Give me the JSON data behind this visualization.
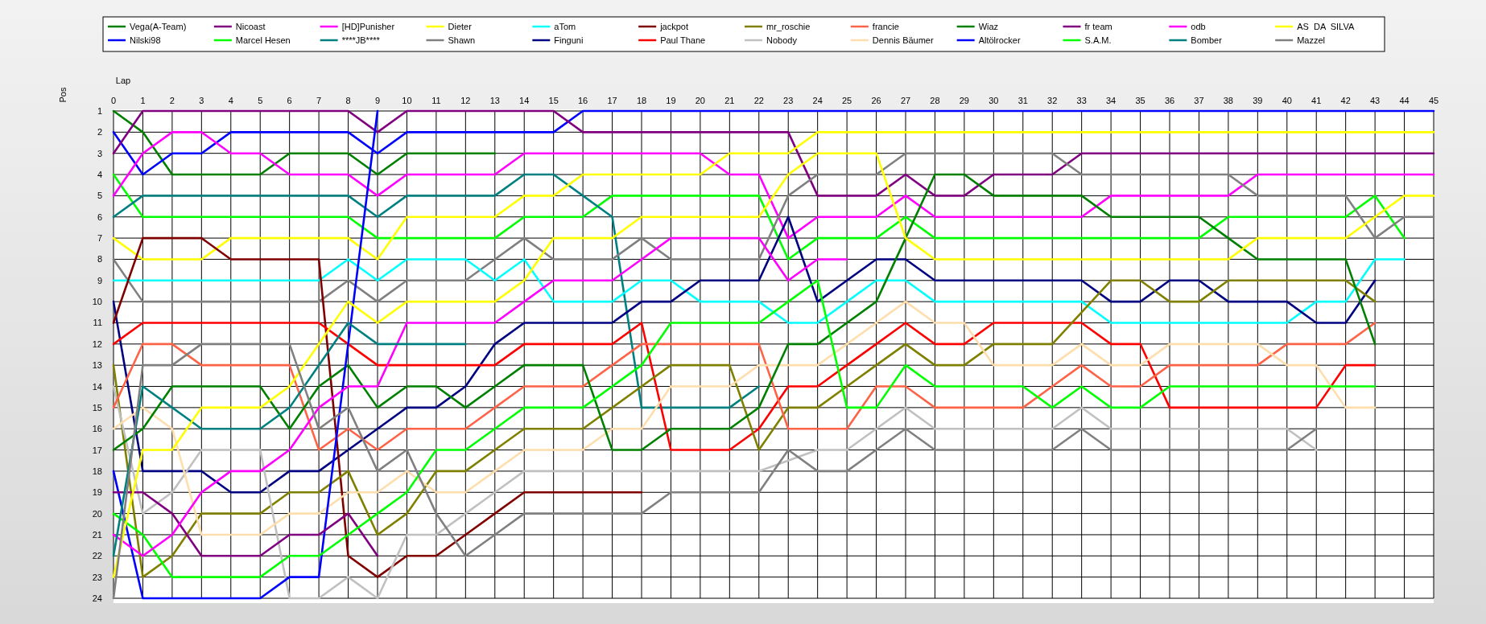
{
  "chart_data": {
    "type": "line",
    "xlabel": "Lap",
    "ylabel": "Pos",
    "x": [
      0,
      1,
      2,
      3,
      4,
      5,
      6,
      7,
      8,
      9,
      10,
      11,
      12,
      13,
      14,
      15,
      16,
      17,
      18,
      19,
      20,
      21,
      22,
      23,
      24,
      25,
      26,
      27,
      28,
      29,
      30,
      31,
      32,
      33,
      34,
      35,
      36,
      37,
      38,
      39,
      40,
      41,
      42,
      43,
      44,
      45
    ],
    "xlim": [
      0,
      45
    ],
    "xticks": [
      0,
      1,
      2,
      3,
      4,
      5,
      6,
      7,
      8,
      9,
      10,
      11,
      12,
      13,
      14,
      15,
      16,
      17,
      18,
      19,
      20,
      21,
      22,
      23,
      24,
      25,
      26,
      27,
      28,
      29,
      30,
      31,
      32,
      33,
      34,
      35,
      36,
      37,
      38,
      39,
      40,
      41,
      42,
      43,
      44,
      45
    ],
    "ylim": [
      24,
      1
    ],
    "yticks": [
      1,
      2,
      3,
      4,
      5,
      6,
      7,
      8,
      9,
      10,
      11,
      12,
      13,
      14,
      15,
      16,
      17,
      18,
      19,
      20,
      21,
      22,
      23,
      24
    ],
    "grid": true,
    "legend": "top",
    "marker": "none",
    "line_style": "solid",
    "series": [
      {
        "name": "Vega(A-Team)",
        "color": "#008000",
        "values": [
          1,
          2,
          4,
          4,
          4,
          4,
          3,
          3,
          3,
          4,
          3,
          3,
          3,
          3,
          null,
          null,
          null,
          null,
          null,
          null,
          null,
          null,
          null,
          null,
          null,
          null,
          null,
          null,
          null,
          null,
          null,
          null,
          null,
          null,
          null,
          null,
          null,
          null,
          null,
          null,
          null,
          null,
          null,
          null,
          null,
          null
        ]
      },
      {
        "name": "Nilski98",
        "color": "#0000ff",
        "values": [
          2,
          4,
          3,
          3,
          2,
          2,
          2,
          2,
          2,
          3,
          2,
          2,
          2,
          2,
          2,
          2,
          1,
          1,
          1,
          1,
          1,
          1,
          1,
          1,
          1,
          1,
          1,
          1,
          1,
          1,
          1,
          1,
          1,
          1,
          1,
          1,
          1,
          1,
          1,
          1,
          1,
          1,
          1,
          1,
          1,
          1
        ]
      },
      {
        "name": "Nicoast",
        "color": "#800080",
        "values": [
          3,
          1,
          1,
          1,
          1,
          1,
          1,
          1,
          1,
          2,
          1,
          1,
          1,
          1,
          1,
          1,
          2,
          2,
          2,
          2,
          2,
          2,
          2,
          2,
          5,
          5,
          5,
          4,
          5,
          5,
          4,
          4,
          4,
          3,
          3,
          3,
          3,
          3,
          3,
          3,
          3,
          3,
          3,
          3,
          3,
          3
        ]
      },
      {
        "name": "Marcel Hesen",
        "color": "#00ff00",
        "values": [
          4,
          6,
          6,
          6,
          6,
          6,
          6,
          6,
          6,
          7,
          7,
          7,
          7,
          7,
          6,
          6,
          6,
          5,
          5,
          5,
          5,
          5,
          5,
          8,
          7,
          7,
          7,
          6,
          7,
          7,
          7,
          7,
          7,
          7,
          7,
          7,
          7,
          7,
          6,
          6,
          6,
          6,
          6,
          5,
          7,
          null
        ]
      },
      {
        "name": "[HD]Punisher",
        "color": "#ff00ff",
        "values": [
          5,
          3,
          2,
          2,
          3,
          3,
          4,
          4,
          4,
          5,
          4,
          4,
          4,
          4,
          3,
          3,
          3,
          3,
          3,
          3,
          3,
          4,
          4,
          7,
          6,
          6,
          6,
          5,
          6,
          6,
          6,
          6,
          6,
          6,
          5,
          5,
          5,
          5,
          5,
          4,
          4,
          4,
          4,
          4,
          4,
          4
        ]
      },
      {
        "name": "****JB****",
        "color": "#008080",
        "values": [
          6,
          5,
          5,
          5,
          5,
          5,
          5,
          5,
          5,
          6,
          5,
          5,
          5,
          5,
          4,
          4,
          5,
          6,
          15,
          15,
          15,
          15,
          14,
          null,
          null,
          null,
          null,
          null,
          null,
          null,
          null,
          null,
          null,
          null,
          null,
          null,
          null,
          null,
          null,
          null,
          null,
          null,
          null,
          null,
          null,
          null
        ]
      },
      {
        "name": "Dieter",
        "color": "#ffff00",
        "values": [
          7,
          8,
          8,
          8,
          7,
          7,
          7,
          7,
          7,
          8,
          6,
          6,
          6,
          6,
          5,
          5,
          4,
          4,
          4,
          4,
          4,
          3,
          3,
          3,
          2,
          2,
          2,
          2,
          2,
          2,
          2,
          2,
          2,
          2,
          2,
          2,
          2,
          2,
          2,
          2,
          2,
          2,
          2,
          2,
          2,
          2
        ]
      },
      {
        "name": "Shawn",
        "color": "#808080",
        "values": [
          8,
          10,
          10,
          10,
          10,
          10,
          10,
          10,
          9,
          10,
          9,
          9,
          9,
          8,
          7,
          8,
          8,
          8,
          7,
          8,
          8,
          8,
          8,
          5,
          4,
          4,
          4,
          3,
          3,
          3,
          3,
          3,
          3,
          4,
          4,
          4,
          4,
          4,
          4,
          5,
          5,
          5,
          5,
          7,
          6,
          6
        ]
      },
      {
        "name": "aTom",
        "color": "#00ffff",
        "values": [
          9,
          9,
          9,
          9,
          9,
          9,
          9,
          9,
          8,
          9,
          8,
          8,
          8,
          9,
          8,
          10,
          10,
          10,
          9,
          9,
          10,
          10,
          10,
          11,
          11,
          10,
          9,
          9,
          10,
          10,
          10,
          10,
          10,
          10,
          11,
          11,
          11,
          11,
          11,
          11,
          11,
          10,
          10,
          8,
          8,
          null
        ]
      },
      {
        "name": "Finguni",
        "color": "#000080",
        "values": [
          10,
          18,
          18,
          18,
          19,
          19,
          18,
          18,
          17,
          16,
          15,
          15,
          14,
          12,
          11,
          11,
          11,
          11,
          10,
          10,
          9,
          9,
          9,
          6,
          10,
          9,
          8,
          8,
          9,
          9,
          9,
          9,
          9,
          9,
          10,
          10,
          9,
          9,
          10,
          10,
          10,
          11,
          11,
          9,
          null,
          null
        ]
      },
      {
        "name": "jackpot",
        "color": "#800000",
        "values": [
          11,
          7,
          7,
          7,
          8,
          8,
          8,
          8,
          22,
          23,
          22,
          22,
          21,
          20,
          19,
          19,
          19,
          19,
          19,
          null,
          null,
          null,
          null,
          null,
          null,
          null,
          null,
          null,
          null,
          null,
          null,
          null,
          null,
          null,
          null,
          null,
          null,
          null,
          null,
          null,
          null,
          null,
          null,
          null,
          null,
          null
        ]
      },
      {
        "name": "Paul Thane",
        "color": "#ff0000",
        "values": [
          12,
          11,
          11,
          11,
          11,
          11,
          11,
          11,
          12,
          13,
          13,
          13,
          13,
          13,
          12,
          12,
          12,
          12,
          11,
          17,
          17,
          17,
          16,
          14,
          14,
          13,
          12,
          11,
          12,
          12,
          11,
          11,
          11,
          11,
          12,
          12,
          15,
          15,
          15,
          15,
          15,
          15,
          13,
          13,
          null,
          null
        ]
      },
      {
        "name": "mr_roschie",
        "color": "#808000",
        "values": [
          13,
          23,
          22,
          20,
          20,
          20,
          19,
          19,
          18,
          21,
          20,
          18,
          18,
          17,
          16,
          16,
          16,
          15,
          14,
          13,
          13,
          13,
          17,
          15,
          15,
          14,
          13,
          12,
          13,
          13,
          12,
          12,
          12,
          10.5,
          9,
          9,
          10,
          10,
          9,
          9,
          9,
          9,
          9,
          10,
          null,
          null
        ]
      },
      {
        "name": "Nobody",
        "color": "#c0c0c0",
        "values": [
          14,
          20,
          19,
          17,
          17,
          17,
          24,
          24,
          23,
          24,
          21,
          21,
          20,
          19,
          18,
          18,
          18,
          18,
          18,
          18,
          18,
          18,
          18,
          17.5,
          17,
          17,
          16,
          15,
          16,
          16,
          16,
          16,
          16,
          15,
          16,
          16,
          16,
          16,
          16,
          16,
          16,
          17,
          null,
          null,
          null,
          null
        ]
      },
      {
        "name": "francie",
        "color": "#ff6347",
        "values": [
          15,
          12,
          12,
          13,
          13,
          13,
          13,
          17,
          16,
          17,
          16,
          16,
          16,
          15,
          14,
          14,
          14,
          13,
          12,
          12,
          12,
          12,
          12,
          16,
          16,
          16,
          14,
          14,
          15,
          15,
          15,
          15,
          14,
          13,
          14,
          14,
          13,
          13,
          13,
          13,
          12,
          12,
          12,
          11,
          null,
          null
        ]
      },
      {
        "name": "Dennis Bäumer",
        "color": "#ffdead",
        "values": [
          16,
          15,
          16,
          21,
          21,
          21,
          20,
          20,
          19,
          19,
          18,
          19,
          19,
          18,
          17,
          17,
          17,
          16,
          16,
          14,
          14,
          14,
          13,
          13,
          13,
          12,
          11,
          10,
          11,
          11,
          13,
          13,
          13,
          12,
          13,
          13,
          12,
          12,
          12,
          12,
          13,
          13,
          15,
          15,
          null,
          null
        ]
      },
      {
        "name": "Wiaz",
        "color": "#008000",
        "values": [
          17,
          16,
          14,
          14,
          14,
          14,
          16,
          14,
          13,
          15,
          14,
          14,
          15,
          14,
          13,
          13,
          13,
          17,
          17,
          16,
          16,
          16,
          15,
          12,
          12,
          11,
          10,
          7,
          4,
          4,
          5,
          5,
          5,
          5,
          6,
          6,
          6,
          6,
          7,
          8,
          8,
          8,
          8,
          12,
          null,
          null
        ]
      },
      {
        "name": "Altölrocker",
        "color": "#0000ff",
        "values": [
          18,
          24,
          24,
          24,
          24,
          24,
          23,
          23,
          12,
          1,
          null,
          null,
          null,
          null,
          null,
          null,
          null,
          null,
          null,
          null,
          null,
          null,
          null,
          null,
          null,
          null,
          null,
          null,
          null,
          null,
          null,
          null,
          null,
          null,
          null,
          null,
          null,
          null,
          null,
          null,
          null,
          null,
          null,
          null,
          null,
          null
        ]
      },
      {
        "name": "fr team",
        "color": "#800080",
        "values": [
          19,
          19,
          20,
          22,
          22,
          22,
          21,
          21,
          20,
          22,
          null,
          null,
          null,
          null,
          null,
          null,
          null,
          null,
          null,
          null,
          null,
          null,
          null,
          null,
          null,
          null,
          null,
          null,
          null,
          null,
          null,
          null,
          null,
          null,
          null,
          null,
          null,
          null,
          null,
          null,
          null,
          null,
          null,
          null,
          null,
          null
        ]
      },
      {
        "name": "S.A.M.",
        "color": "#00ff00",
        "values": [
          20,
          21,
          23,
          23,
          23,
          23,
          22,
          22,
          21,
          20,
          19,
          17,
          17,
          16,
          15,
          15,
          15,
          14,
          13,
          11,
          11,
          11,
          11,
          10,
          9,
          15,
          15,
          13,
          14,
          14,
          14,
          14,
          15,
          14,
          15,
          15,
          14,
          14,
          14,
          14,
          14,
          14,
          14,
          14,
          null,
          null
        ]
      },
      {
        "name": "odb",
        "color": "#ff00ff",
        "values": [
          21,
          22,
          21,
          19,
          18,
          18,
          17,
          15,
          14,
          14,
          11,
          11,
          11,
          11,
          10,
          9,
          9,
          9,
          8,
          7,
          7,
          7,
          7,
          9,
          8,
          8,
          null,
          null,
          null,
          null,
          null,
          null,
          null,
          null,
          null,
          null,
          null,
          null,
          null,
          null,
          null,
          null,
          null,
          null,
          null,
          null
        ]
      },
      {
        "name": "Bomber",
        "color": "#008080",
        "values": [
          22,
          14,
          15,
          16,
          16,
          16,
          15,
          13,
          11,
          12,
          12,
          12,
          12,
          null,
          null,
          null,
          null,
          null,
          null,
          null,
          null,
          null,
          null,
          null,
          null,
          null,
          null,
          null,
          null,
          null,
          null,
          null,
          null,
          null,
          null,
          null,
          null,
          null,
          null,
          null,
          null,
          null,
          null,
          null,
          null,
          null
        ]
      },
      {
        "name": "AS  DA  SILVA",
        "color": "#ffff00",
        "values": [
          23,
          17,
          17,
          15,
          15,
          15,
          14,
          12,
          10,
          11,
          10,
          10,
          10,
          10,
          9,
          7,
          7,
          7,
          6,
          6,
          6,
          6,
          6,
          4,
          3,
          3,
          3,
          7,
          8,
          8,
          8,
          8,
          8,
          8,
          8,
          8,
          8,
          8,
          8,
          7,
          7,
          7,
          7,
          6,
          5,
          5
        ]
      },
      {
        "name": "Mazzel",
        "color": "#808080",
        "values": [
          24,
          13,
          13,
          12,
          12,
          12,
          12,
          16,
          15,
          18,
          17,
          20,
          22,
          21,
          20,
          20,
          20,
          20,
          20,
          19,
          19,
          19,
          19,
          17,
          18,
          18,
          17,
          16,
          17,
          17,
          17,
          17,
          17,
          16,
          17,
          17,
          17,
          17,
          17,
          17,
          17,
          16,
          null,
          null,
          null,
          null
        ]
      }
    ]
  }
}
